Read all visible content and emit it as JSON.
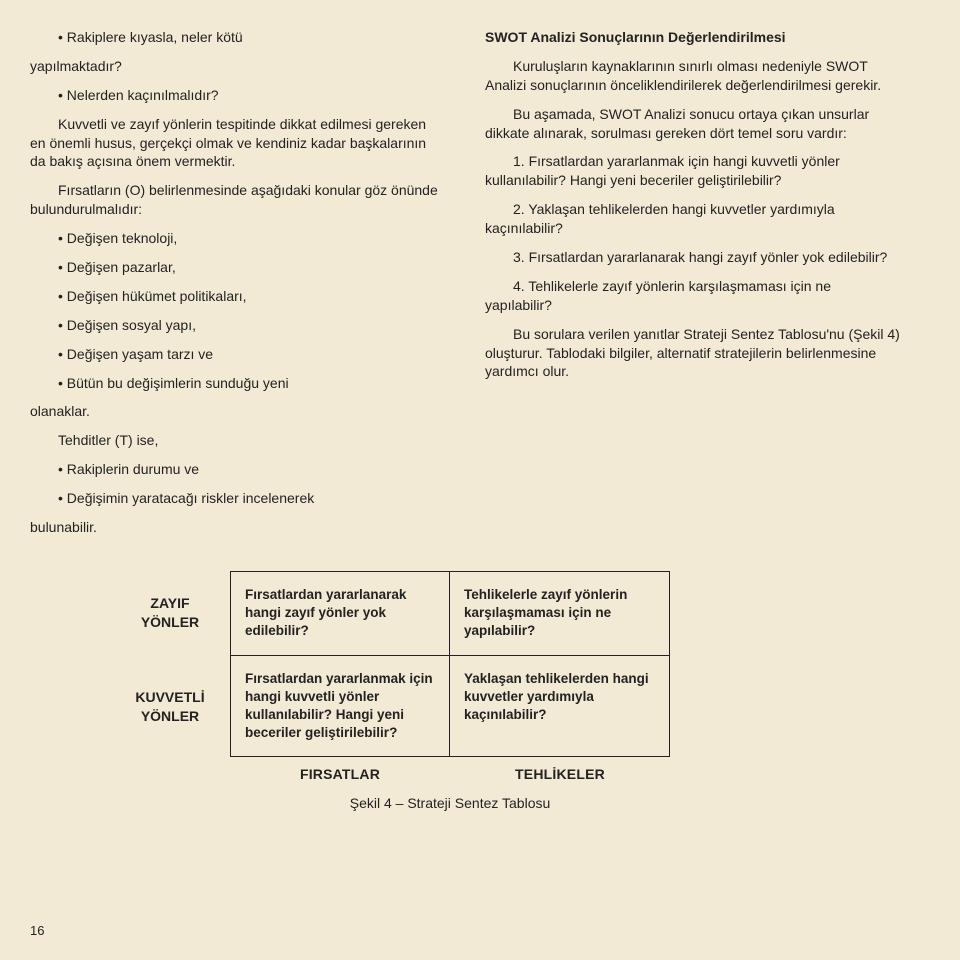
{
  "left": {
    "b1a": "Rakiplere kıyasla, neler kötü",
    "b1b": "yapılmaktadır?",
    "b2": "Nelerden kaçınılmalıdır?",
    "p1": "Kuvvetli ve zayıf yönlerin tespitinde dikkat edilmesi gereken en önemli husus, gerçekçi olmak ve kendiniz kadar başkalarının da bakış açısına önem vermektir.",
    "p2": "Fırsatların (O) belirlenmesinde aşağıdaki konular göz önünde bulundurulmalıdır:",
    "o1": "Değişen teknoloji,",
    "o2": "Değişen pazarlar,",
    "o3": "Değişen hükümet politikaları,",
    "o4": "Değişen sosyal yapı,",
    "o5": "Değişen yaşam tarzı ve",
    "o6a": "Bütün bu değişimlerin sunduğu yeni",
    "o6b": "olanaklar.",
    "p3": "Tehditler (T) ise,",
    "t1": "Rakiplerin durumu ve",
    "t2a": "Değişimin yaratacağı riskler incelenerek",
    "t2b": "bulunabilir."
  },
  "right": {
    "h": "SWOT Analizi Sonuçlarının Değerlendirilmesi",
    "p1": "Kuruluşların kaynaklarının sınırlı olması nedeniyle SWOT Analizi sonuçlarının önceliklendirilerek değerlendirilmesi gerekir.",
    "p2": "Bu aşamada, SWOT Analizi sonucu ortaya çıkan unsurlar dikkate alınarak, sorulması gereken dört temel soru vardır:",
    "q1": "1. Fırsatlardan yararlanmak için hangi kuvvetli yönler kullanılabilir? Hangi yeni beceriler geliştirilebilir?",
    "q2": "2. Yaklaşan tehlikelerden hangi kuvvetler yardımıyla kaçınılabilir?",
    "q3": "3. Fırsatlardan yararlanarak hangi zayıf yönler yok edilebilir?",
    "q4": "4. Tehlikelerle zayıf yönlerin karşılaşmaması için ne yapılabilir?",
    "p3": "Bu sorulara verilen yanıtlar Strateji Sentez Tablosu'nu (Şekil 4) oluşturur. Tablodaki bilgiler, alternatif stratejilerin belirlenmesine yardımcı olur."
  },
  "table": {
    "row_weak": "ZAYIF\nYÖNLER",
    "row_strong": "KUVVETLİ\nYÖNLER",
    "col_opp": "FIRSATLAR",
    "col_thr": "TEHLİKELER",
    "c_wo": "Fırsatlardan yararlanarak hangi zayıf yönler yok edilebilir?",
    "c_wt": "Tehlikelerle zayıf yönlerin karşılaşmaması için ne yapılabilir?",
    "c_so": "Fırsatlardan yararlanmak için hangi kuvvetli yönler kullanılabilir? Hangi yeni beceriler geliştirilebilir?",
    "c_st": "Yaklaşan tehlikelerden hangi kuvvetler yardımıyla kaçınılabilir?",
    "caption": "Şekil 4 – Strateji Sentez Tablosu"
  },
  "pagenum": "16"
}
